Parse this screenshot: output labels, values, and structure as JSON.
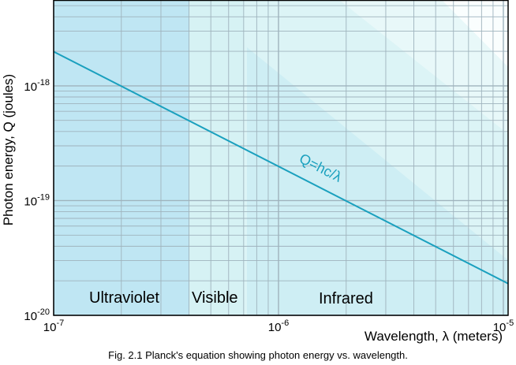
{
  "chart_data": {
    "type": "line",
    "xlabel": "Wavelength, λ (meters)",
    "ylabel": "Photon energy, Q (joules)",
    "x_scale": "log",
    "y_scale": "log",
    "xlim": [
      1e-07,
      1.05e-05
    ],
    "ylim": [
      1e-20,
      5.6e-18
    ],
    "x_ticks": [
      {
        "value": 1e-07,
        "base": "10",
        "exp": "-7"
      },
      {
        "value": 1e-06,
        "base": "10",
        "exp": "-6"
      },
      {
        "value": 1e-05,
        "base": "10",
        "exp": "-5"
      }
    ],
    "y_ticks": [
      {
        "value": 1e-20,
        "base": "10",
        "exp": "-20"
      },
      {
        "value": 1e-19,
        "base": "10",
        "exp": "-19"
      },
      {
        "value": 1e-18,
        "base": "10",
        "exp": "-18"
      }
    ],
    "grid": true,
    "series": [
      {
        "label": "Q=hc/λ",
        "color": "#1aa0be",
        "x": [
          1e-07,
          1.05e-05
        ],
        "y": [
          1.986e-18,
          1.89e-20
        ]
      }
    ],
    "regions": [
      {
        "name": "Ultraviolet",
        "x_range": [
          1e-07,
          4e-07
        ],
        "color": "#bfe6f3"
      },
      {
        "name": "Visible",
        "x_range": [
          4e-07,
          7e-07
        ],
        "color": "#d6f2f4"
      },
      {
        "name": "Infrared",
        "x_range": [
          7e-07,
          1.05e-05
        ],
        "color": "#dcf4f6"
      }
    ],
    "caption": "Fig. 2.1  Planck's equation showing photon energy vs. wavelength."
  }
}
